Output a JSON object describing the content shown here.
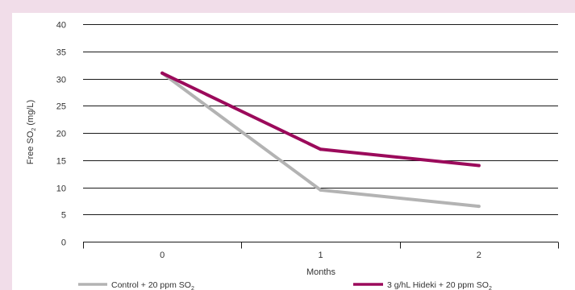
{
  "chart_data": {
    "type": "line",
    "title": "",
    "xlabel": "Months",
    "ylabel": {
      "text": "Free SO",
      "subscript": "2",
      "suffix": " (mg/L)"
    },
    "categories": [
      "0",
      "1",
      "2"
    ],
    "ylim": [
      0,
      40
    ],
    "yticks": [
      "0",
      "5",
      "10",
      "15",
      "20",
      "25",
      "30",
      "35",
      "40"
    ],
    "grid": true,
    "legend_position": "bottom",
    "series": [
      {
        "name": {
          "text": "Control + 20 ppm SO",
          "subscript": "2"
        },
        "color": "#b3b3b3",
        "values": [
          31,
          9.5,
          6.5
        ]
      },
      {
        "name": {
          "text": "3 g/hL Hideki + 20 ppm SO",
          "subscript": "2"
        },
        "color": "#9b0a5b",
        "values": [
          31,
          17,
          14
        ]
      }
    ]
  }
}
